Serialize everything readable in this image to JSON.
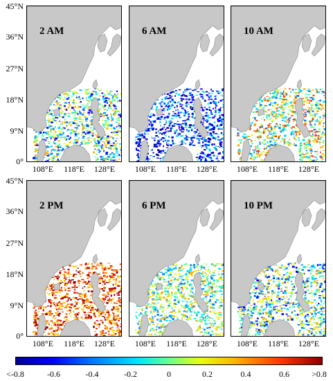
{
  "panels": [
    {
      "label": "2 AM",
      "tone": "mixed-blue"
    },
    {
      "label": "6 AM",
      "tone": "blue"
    },
    {
      "label": "10 AM",
      "tone": "mixed-green"
    },
    {
      "label": "2 PM",
      "tone": "orange-red"
    },
    {
      "label": "6 PM",
      "tone": "mixed"
    },
    {
      "label": "10 PM",
      "tone": "mixed-blue"
    }
  ],
  "lat_labels": [
    "45°N",
    "36°N",
    "27°N",
    "18°N",
    "9°N",
    "0°"
  ],
  "lon_labels": [
    "108°E",
    "118°E",
    "128°E"
  ],
  "colorbar": {
    "ticks": [
      "<-0.8",
      "-0.6",
      "-0.4",
      "-0.2",
      "0",
      "0.2",
      "0.4",
      "0.6",
      ">0.8"
    ],
    "colors": [
      "#00008f",
      "#0000ff",
      "#0080ff",
      "#00e5ff",
      "#6cff8f",
      "#e6ff16",
      "#ffb000",
      "#ff3a00",
      "#8a0000"
    ]
  },
  "colors": {
    "land": "#c8c8c8",
    "ocean": "#ffffff",
    "border": "#000000"
  }
}
